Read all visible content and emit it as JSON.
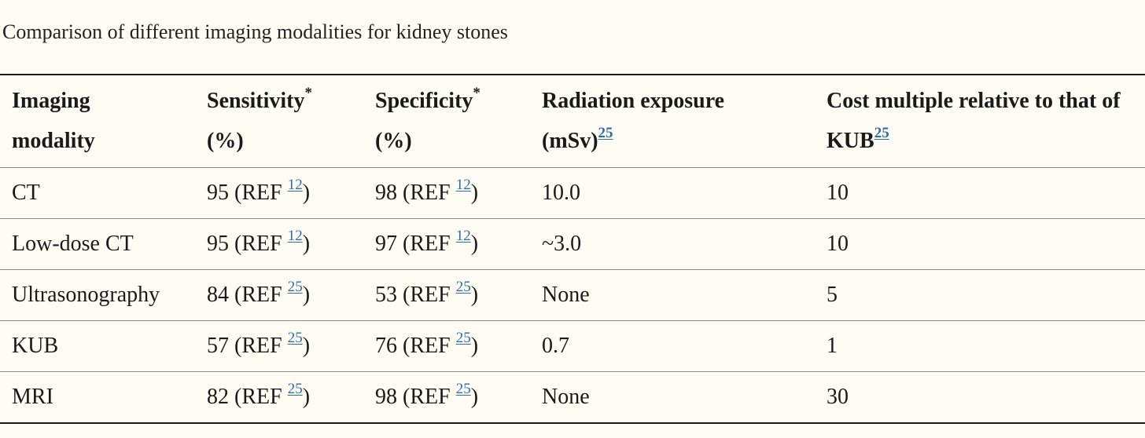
{
  "caption": "Comparison of different imaging modalities for kidney stones",
  "columns": [
    {
      "line1": "Imaging",
      "line2": "modality",
      "mark": "",
      "ref": ""
    },
    {
      "line1": "Sensitivity",
      "line2": "(%)",
      "mark": "*",
      "ref": ""
    },
    {
      "line1": "Specificity",
      "line2": "(%)",
      "mark": "*",
      "ref": ""
    },
    {
      "line1": "Radiation exposure",
      "line2": "(mSv)",
      "mark": "",
      "ref": "25"
    },
    {
      "line1": "Cost multiple relative to that of",
      "line2": "KUB",
      "mark": "",
      "ref": "25"
    }
  ],
  "ref_prefix": "(REF ",
  "ref_suffix": ")",
  "rows": [
    {
      "modality": "CT",
      "sensitivity": "95",
      "sensitivity_ref": "12",
      "specificity": "98",
      "specificity_ref": "12",
      "radiation": "10.0",
      "cost": "10"
    },
    {
      "modality": "Low-dose CT",
      "sensitivity": "95",
      "sensitivity_ref": "12",
      "specificity": "97",
      "specificity_ref": "12",
      "radiation": "~3.0",
      "cost": "10"
    },
    {
      "modality": "Ultrasonography",
      "sensitivity": "84",
      "sensitivity_ref": "25",
      "specificity": "53",
      "specificity_ref": "25",
      "radiation": "None",
      "cost": "5"
    },
    {
      "modality": "KUB",
      "sensitivity": "57",
      "sensitivity_ref": "25",
      "specificity": "76",
      "specificity_ref": "25",
      "radiation": "0.7",
      "cost": "1"
    },
    {
      "modality": "MRI",
      "sensitivity": "82",
      "sensitivity_ref": "25",
      "specificity": "98",
      "specificity_ref": "25",
      "radiation": "None",
      "cost": "30"
    }
  ],
  "colors": {
    "background": "#fffdf3",
    "text": "#1a1a1a",
    "link": "#2a6db0",
    "rule": "#8a8a8a"
  }
}
